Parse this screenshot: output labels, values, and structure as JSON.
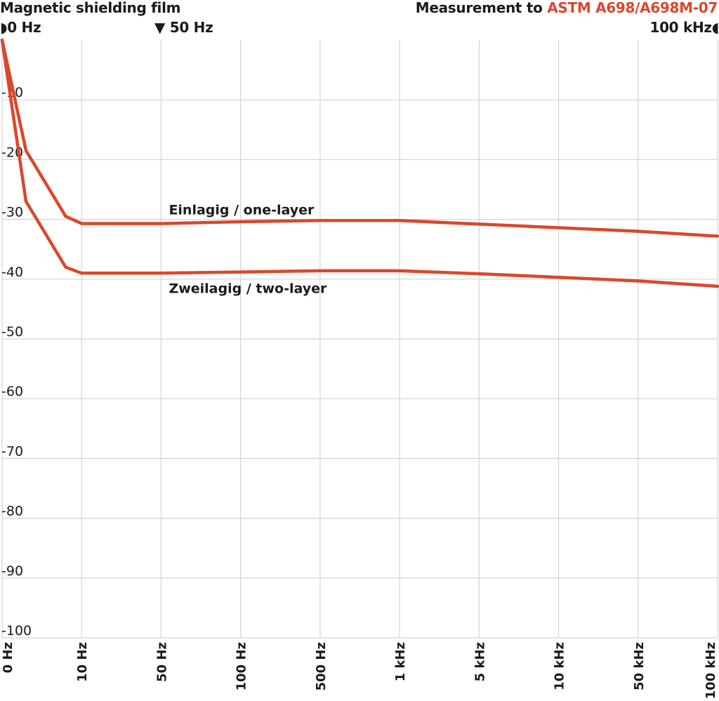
{
  "header": {
    "title": "Magnetic shielding film",
    "standard_prefix": "Measurement to",
    "standard_name": "ASTM A698/A698M-07",
    "markers": {
      "left": "0 Hz",
      "middle": "50 Hz",
      "right": "100 kHz",
      "left_icon": "triangle-right-icon",
      "middle_icon": "triangle-down-icon",
      "right_icon": "triangle-left-icon"
    }
  },
  "colors": {
    "series": "#d9482b",
    "grid": "#d4d4d4",
    "text": "#1a1a1a",
    "accent": "#d9482b"
  },
  "chart_data": {
    "type": "line",
    "title": "",
    "xlabel": "",
    "ylabel": "",
    "categories": [
      "0 Hz",
      "10 Hz",
      "50 Hz",
      "100 Hz",
      "500 Hz",
      "1 kHz",
      "5 kHz",
      "10 kHz",
      "50 kHz",
      "100 kHz"
    ],
    "ylim": [
      -100,
      0
    ],
    "yticks": [
      "-10",
      "-20",
      "-30",
      "-40",
      "-50",
      "-60",
      "-70",
      "-80",
      "-90",
      "-100"
    ],
    "grid": true,
    "legend": "inline labels",
    "series": [
      {
        "name": "Einlagig / one-layer",
        "x": [
          0,
          0.3,
          0.8,
          1,
          2,
          3,
          4,
          5,
          6,
          7,
          8,
          9
        ],
        "values": [
          0,
          -18.5,
          -29.5,
          -30.7,
          -30.7,
          -30.4,
          -30.2,
          -30.2,
          -30.8,
          -31.4,
          -32,
          -32.8
        ]
      },
      {
        "name": "Zweilagig / two-layer",
        "x": [
          0,
          0.3,
          0.8,
          1,
          2,
          3,
          4,
          5,
          6,
          7,
          8,
          9
        ],
        "values": [
          0,
          -27,
          -38,
          -39,
          -39,
          -38.8,
          -38.6,
          -38.6,
          -39.1,
          -39.7,
          -40.3,
          -41.2
        ]
      }
    ]
  }
}
